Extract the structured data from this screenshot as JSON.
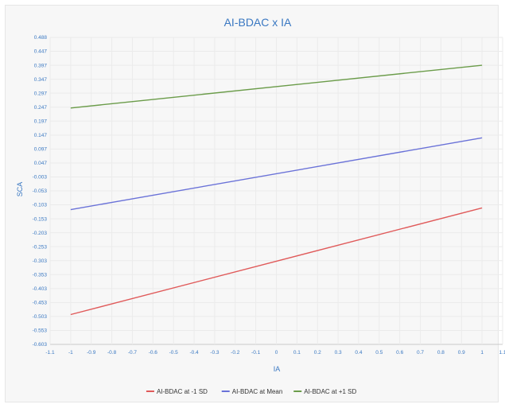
{
  "chart_data": {
    "type": "line",
    "title": "AI-BDAC x IA",
    "xlabel": "IA",
    "ylabel": "SCA",
    "xlim": [
      -1.1,
      1.1
    ],
    "ylim": [
      -0.603,
      0.488
    ],
    "x_ticks": [
      "-1.1",
      "-1",
      "-0.9",
      "-0.8",
      "-0.7",
      "-0.6",
      "-0.5",
      "-0.4",
      "-0.3",
      "-0.2",
      "-0.1",
      "0",
      "0.1",
      "0.2",
      "0.3",
      "0.4",
      "0.5",
      "0.6",
      "0.7",
      "0.8",
      "0.9",
      "1",
      "1.1"
    ],
    "y_ticks": [
      "0.488",
      "0.447",
      "0.397",
      "0.347",
      "0.297",
      "0.247",
      "0.197",
      "0.147",
      "0.097",
      "0.047",
      "-0.003",
      "-0.053",
      "-0.103",
      "-0.153",
      "-0.203",
      "-0.253",
      "-0.303",
      "-0.353",
      "-0.403",
      "-0.453",
      "-0.503",
      "-0.553",
      "-0.603"
    ],
    "grid": true,
    "legend_position": "bottom",
    "series": [
      {
        "name": "AI-BDAC at -1 SD",
        "color": "#e05a5a",
        "x": [
          -1,
          1
        ],
        "y": [
          -0.497,
          -0.118
        ]
      },
      {
        "name": "AI-BDAC at Mean",
        "color": "#6a72d8",
        "x": [
          -1,
          1
        ],
        "y": [
          -0.124,
          0.131
        ]
      },
      {
        "name": "AI-BDAC at +1 SD",
        "color": "#6b9c4a",
        "x": [
          -1,
          1
        ],
        "y": [
          0.237,
          0.389
        ]
      }
    ]
  }
}
